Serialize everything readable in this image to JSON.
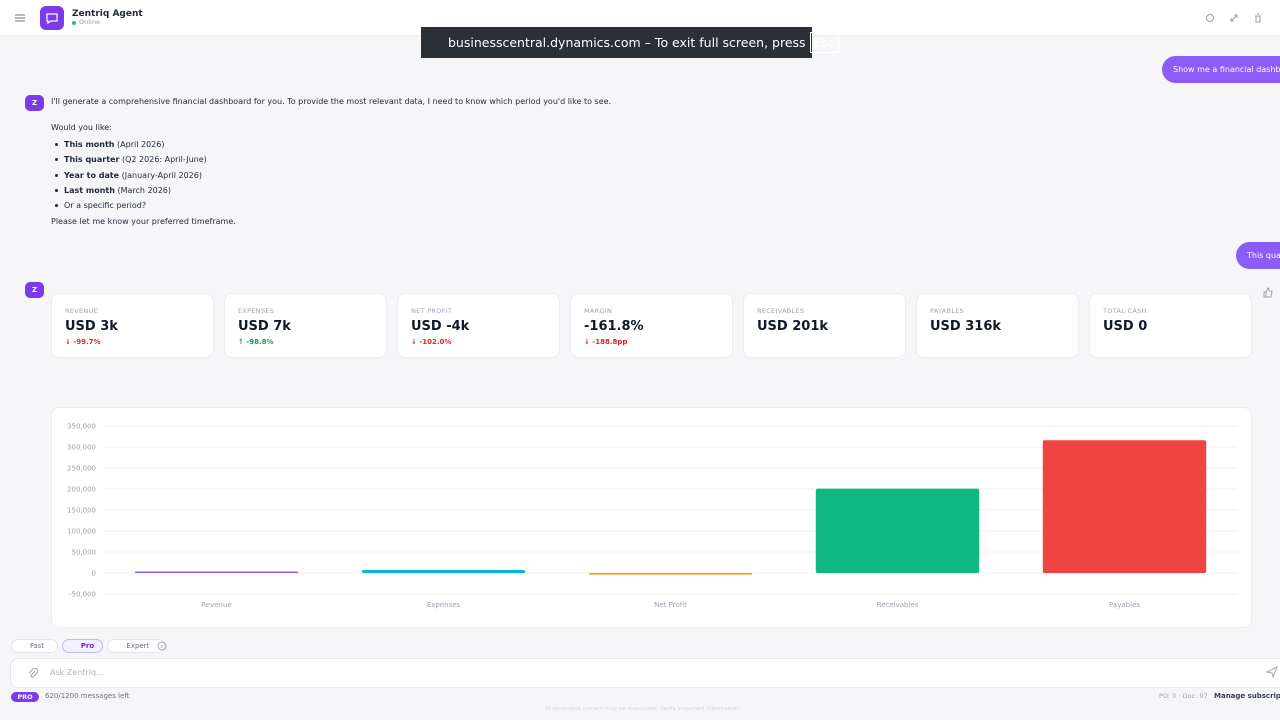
{
  "header": {
    "title": "Zentriq Agent",
    "status": "Online"
  },
  "banner": {
    "text": "businesscentral.dynamics.com – To exit full screen, press",
    "key": "Esc"
  },
  "messages": [
    {
      "role": "user",
      "text": "Show me a financial dashbo"
    },
    {
      "role": "assistant",
      "avatar": "Z",
      "intro": "I'll generate a comprehensive financial dashboard for you. To provide the most relevant data, I need to know which period you'd like to see.",
      "question": "Would you like:",
      "options": [
        {
          "bold": "This month",
          "rest": " (April 2026)"
        },
        {
          "bold": "This quarter",
          "rest": " (Q2 2026: April-June)"
        },
        {
          "bold": "Year to date",
          "rest": " (January-April 2026)"
        },
        {
          "bold": "Last month",
          "rest": " (March 2026)"
        },
        {
          "bold": "",
          "rest": "Or a specific period?"
        }
      ],
      "closing": "Please let me know your preferred timeframe."
    },
    {
      "role": "user",
      "text": "This quar"
    },
    {
      "role": "assistant",
      "avatar": "Z"
    }
  ],
  "kpis": [
    {
      "label": "REVENUE",
      "value": "USD 3k",
      "change": "↓ -99.7%",
      "trend": "down"
    },
    {
      "label": "EXPENSES",
      "value": "USD 7k",
      "change": "↑ -98.8%",
      "trend": "up"
    },
    {
      "label": "NET PROFIT",
      "value": "USD -4k",
      "change": "↓ -102.0%",
      "trend": "down"
    },
    {
      "label": "MARGIN",
      "value": "-161.8%",
      "change": "↓ -188.8pp",
      "trend": "down"
    },
    {
      "label": "RECEIVABLES",
      "value": "USD 201k"
    },
    {
      "label": "PAYABLES",
      "value": "USD 316k"
    },
    {
      "label": "TOTAL CASH",
      "value": "USD 0"
    }
  ],
  "chart_data": {
    "type": "bar",
    "categories": [
      "Revenue",
      "Expenses",
      "Net Profit",
      "Receivables",
      "Payables"
    ],
    "values": [
      3000,
      7000,
      -4000,
      201000,
      316000
    ],
    "colors": [
      "#8b5cf6",
      "#06b6d4",
      "#f59e0b",
      "#10b981",
      "#ef4444"
    ],
    "ylim": [
      -50000,
      350000
    ],
    "yticks": [
      {
        "value": -50000,
        "label": "-50,000"
      },
      0,
      {
        "value": 50000,
        "label": "50,000"
      },
      {
        "value": 100000,
        "label": "100,000"
      },
      {
        "value": 150000,
        "label": "150,000"
      },
      {
        "value": 200000,
        "label": "200,000"
      },
      {
        "value": 250000,
        "label": "250,000"
      },
      {
        "value": 300000,
        "label": "300,000"
      },
      {
        "value": 350000,
        "label": "350,000"
      }
    ],
    "grid": true
  },
  "composer": {
    "modes": [
      "Fast",
      "Pro",
      "Expert"
    ],
    "active_mode": "Pro",
    "placeholder": "Ask Zentriq...",
    "plan": "PRO",
    "quota": "620/1200 messages left",
    "counts": "PO: 0 · Doc: 97",
    "manage": "Manage subscript",
    "disclaimer": "AI-generated content may be inaccurate. Verify important information."
  }
}
